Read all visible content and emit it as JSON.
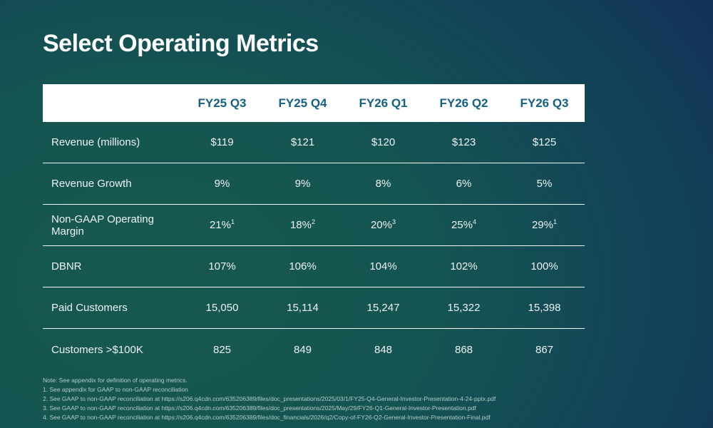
{
  "title": "Select Operating Metrics",
  "table": {
    "columns": [
      "FY25 Q3",
      "FY25 Q4",
      "FY26 Q1",
      "FY26 Q2",
      "FY26 Q3"
    ],
    "rows": [
      {
        "label": "Revenue (millions)",
        "values": [
          "$119",
          "$121",
          "$120",
          "$123",
          "$125"
        ]
      },
      {
        "label": "Revenue Growth",
        "values": [
          "9%",
          "9%",
          "8%",
          "6%",
          "5%"
        ]
      },
      {
        "label": "Non-GAAP Operating Margin",
        "values": [
          "21%",
          "18%",
          "20%",
          "25%",
          "29%"
        ],
        "sups": [
          "1",
          "2",
          "3",
          "4",
          "1"
        ]
      },
      {
        "label": "DBNR",
        "values": [
          "107%",
          "106%",
          "104%",
          "102%",
          "100%"
        ]
      },
      {
        "label": "Paid Customers",
        "values": [
          "15,050",
          "15,114",
          "15,247",
          "15,322",
          "15,398"
        ]
      },
      {
        "label": "Customers >$100K",
        "values": [
          "825",
          "849",
          "848",
          "868",
          "867"
        ]
      }
    ]
  },
  "footnotes": [
    "Note: See appendix for definition of operating metrics.",
    "1. See appendix for GAAP to non-GAAP reconciliation",
    "2. See GAAP to non-GAAP reconciliation at https://s206.q4cdn.com/635206389/files/doc_presentations/2025/03/1/FY25-Q4-General-Investor-Presentation-4-24-pptx.pdf",
    "3. See GAAP to non-GAAP reconciliation at https://s206.q4cdn.com/635206389/files/doc_presentations/2025/May/29/FY26-Q1-General-Investor-Presentation.pdf",
    "4. See GAAP to non-GAAP reconciliation at https://s206.q4cdn.com/635206389/files/doc_financials/2026/q2/Copy-of-FY26-Q2-General-Investor-Presentation-Final.pdf"
  ],
  "colors": {
    "background_teal": "#17594e",
    "background_navy": "#132f52",
    "header_bg": "#ffffff",
    "header_text": "#14607f",
    "body_text": "#edf3f2",
    "footnote_text": "#b5cbc8",
    "divider": "#f4f8f7"
  }
}
